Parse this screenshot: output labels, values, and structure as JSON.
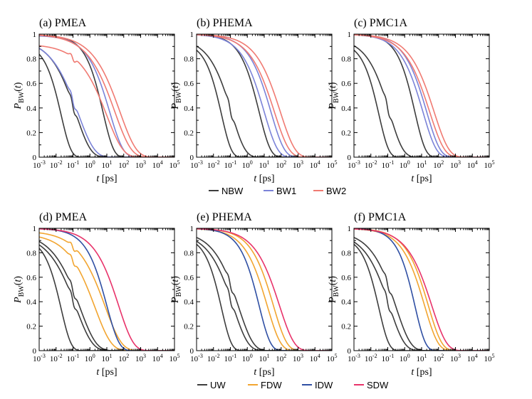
{
  "colors": {
    "NBW": "#3d3d3d",
    "BW1": "#7b83d8",
    "BW2": "#f07a72",
    "UW": "#3d3d3d",
    "FDW": "#f2a530",
    "IDW": "#2f4fa3",
    "SDW": "#e8336a"
  },
  "legends": [
    {
      "labels": [
        "NBW",
        "BW1",
        "BW2"
      ],
      "series_keys": [
        "NBW",
        "BW1",
        "BW2"
      ]
    },
    {
      "labels": [
        "UW",
        "FDW",
        "IDW",
        "SDW"
      ],
      "series_keys": [
        "UW",
        "FDW",
        "IDW",
        "SDW"
      ]
    }
  ],
  "chart_data": [
    {
      "type": "line",
      "title": "(a) PMEA",
      "xlabel": "t [ps]",
      "ylabel": "P_BW(t)",
      "xscale": "log",
      "xlim": [
        0.001,
        100000
      ],
      "ylim": [
        0,
        1
      ],
      "xticks": [
        "10-3",
        "10-2",
        "10-1",
        "100",
        "101",
        "102",
        "103",
        "104",
        "105"
      ],
      "yticks": [
        "0",
        "0.2",
        "0.4",
        "0.6",
        "0.8",
        "1"
      ],
      "series": [
        {
          "name": "NBW",
          "group": "NBW",
          "tau": 0.02,
          "beta": 0.75,
          "start": 0.93
        },
        {
          "name": "NBW",
          "group": "NBW",
          "tau": 0.15,
          "beta": 0.5,
          "start": 0.96,
          "bump": 0.05
        },
        {
          "name": "NBW",
          "group": "NBW",
          "tau": 6,
          "beta": 0.7,
          "start": 0.99
        },
        {
          "name": "BW1",
          "group": "BW1",
          "tau": 0.2,
          "beta": 0.45,
          "start": 0.97,
          "bump": 0.05
        },
        {
          "name": "BW1",
          "group": "BW1",
          "tau": 15,
          "beta": 0.55,
          "start": 0.99
        },
        {
          "name": "BW2",
          "group": "BW2",
          "tau": 30,
          "beta": 0.45,
          "start": 1.0
        },
        {
          "name": "BW2",
          "group": "BW2",
          "tau": 60,
          "beta": 0.45,
          "start": 1.0
        },
        {
          "name": "BW2",
          "group": "BW2",
          "tau": 10,
          "beta": 0.45,
          "start": 0.92,
          "bump": 0.04
        }
      ]
    },
    {
      "type": "line",
      "title": "(b) PHEMA",
      "xlabel": "t [ps]",
      "ylabel": "P_BW(t)",
      "xscale": "log",
      "xlim": [
        0.001,
        100000
      ],
      "ylim": [
        0,
        1
      ],
      "xticks": [
        "10-3",
        "10-2",
        "10-1",
        "100",
        "101",
        "102",
        "103",
        "104",
        "105"
      ],
      "yticks": [
        "0",
        "0.2",
        "0.4",
        "0.6",
        "0.8",
        "1"
      ],
      "series": [
        {
          "name": "NBW",
          "group": "NBW",
          "tau": 0.03,
          "beta": 0.75,
          "start": 0.94
        },
        {
          "name": "NBW",
          "group": "NBW",
          "tau": 0.12,
          "beta": 0.55,
          "start": 0.97,
          "bump": 0.05
        },
        {
          "name": "NBW",
          "group": "NBW",
          "tau": 5,
          "beta": 0.65,
          "start": 1.0
        },
        {
          "name": "BW1",
          "group": "BW1",
          "tau": 10,
          "beta": 0.55,
          "start": 1.0
        },
        {
          "name": "BW1",
          "group": "BW1",
          "tau": 25,
          "beta": 0.55,
          "start": 1.0
        },
        {
          "name": "BW2",
          "group": "BW2",
          "tau": 40,
          "beta": 0.5,
          "start": 1.0
        },
        {
          "name": "BW2",
          "group": "BW2",
          "tau": 90,
          "beta": 0.5,
          "start": 1.0
        }
      ]
    },
    {
      "type": "line",
      "title": "(c) PMC1A",
      "xlabel": "t [ps]",
      "ylabel": "P_BW(t)",
      "xscale": "log",
      "xlim": [
        0.001,
        100000
      ],
      "ylim": [
        0,
        1
      ],
      "xticks": [
        "10-3",
        "10-2",
        "10-1",
        "100",
        "101",
        "102",
        "103",
        "104",
        "105"
      ],
      "yticks": [
        "0",
        "0.2",
        "0.4",
        "0.6",
        "0.8",
        "1"
      ],
      "series": [
        {
          "name": "NBW",
          "group": "NBW",
          "tau": 0.03,
          "beta": 0.75,
          "start": 0.94
        },
        {
          "name": "NBW",
          "group": "NBW",
          "tau": 0.13,
          "beta": 0.55,
          "start": 0.97,
          "bump": 0.05
        },
        {
          "name": "NBW",
          "group": "NBW",
          "tau": 4,
          "beta": 0.7,
          "start": 1.0
        },
        {
          "name": "BW1",
          "group": "BW1",
          "tau": 12,
          "beta": 0.55,
          "start": 1.0
        },
        {
          "name": "BW1",
          "group": "BW1",
          "tau": 20,
          "beta": 0.55,
          "start": 1.0
        },
        {
          "name": "BW2",
          "group": "BW2",
          "tau": 30,
          "beta": 0.5,
          "start": 1.0
        },
        {
          "name": "BW2",
          "group": "BW2",
          "tau": 55,
          "beta": 0.5,
          "start": 1.0
        }
      ]
    },
    {
      "type": "line",
      "title": "(d) PMEA",
      "xlabel": "t [ps]",
      "ylabel": "P_BW(t)",
      "xscale": "log",
      "xlim": [
        0.001,
        100000
      ],
      "ylim": [
        0,
        1
      ],
      "xticks": [
        "10-3",
        "10-2",
        "10-1",
        "100",
        "101",
        "102",
        "103",
        "104",
        "105"
      ],
      "yticks": [
        "0",
        "0.2",
        "0.4",
        "0.6",
        "0.8",
        "1"
      ],
      "series": [
        {
          "name": "UW",
          "group": "UW",
          "tau": 0.02,
          "beta": 0.75,
          "start": 0.93
        },
        {
          "name": "UW",
          "group": "UW",
          "tau": 0.15,
          "beta": 0.45,
          "start": 0.96,
          "bump": 0.05
        },
        {
          "name": "UW",
          "group": "UW",
          "tau": 0.25,
          "beta": 0.45,
          "start": 0.97,
          "bump": 0.05
        },
        {
          "name": "FDW",
          "group": "FDW",
          "tau": 2,
          "beta": 0.45,
          "start": 0.96,
          "bump": 0.04
        },
        {
          "name": "FDW",
          "group": "FDW",
          "tau": 8,
          "beta": 0.45,
          "start": 0.98,
          "bump": 0.04
        },
        {
          "name": "IDW",
          "group": "IDW",
          "tau": 10,
          "beta": 0.6,
          "start": 1.0
        },
        {
          "name": "SDW",
          "group": "SDW",
          "tau": 50,
          "beta": 0.5,
          "start": 1.0
        }
      ]
    },
    {
      "type": "line",
      "title": "(e) PHEMA",
      "xlabel": "t [ps]",
      "ylabel": "P_BW(t)",
      "xscale": "log",
      "xlim": [
        0.001,
        100000
      ],
      "ylim": [
        0,
        1
      ],
      "xticks": [
        "10-3",
        "10-2",
        "10-1",
        "100",
        "101",
        "102",
        "103",
        "104",
        "105"
      ],
      "yticks": [
        "0",
        "0.2",
        "0.4",
        "0.6",
        "0.8",
        "1"
      ],
      "series": [
        {
          "name": "UW",
          "group": "UW",
          "tau": 0.03,
          "beta": 0.75,
          "start": 0.94
        },
        {
          "name": "UW",
          "group": "UW",
          "tau": 0.15,
          "beta": 0.5,
          "start": 0.97,
          "bump": 0.05
        },
        {
          "name": "UW",
          "group": "UW",
          "tau": 0.3,
          "beta": 0.5,
          "start": 0.98,
          "bump": 0.05
        },
        {
          "name": "FDW",
          "group": "FDW",
          "tau": 15,
          "beta": 0.55,
          "start": 1.0
        },
        {
          "name": "FDW",
          "group": "FDW",
          "tau": 35,
          "beta": 0.55,
          "start": 1.0
        },
        {
          "name": "IDW",
          "group": "IDW",
          "tau": 5,
          "beta": 0.65,
          "start": 1.0
        },
        {
          "name": "SDW",
          "group": "SDW",
          "tau": 80,
          "beta": 0.5,
          "start": 1.0
        }
      ]
    },
    {
      "type": "line",
      "title": "(f) PMC1A",
      "xlabel": "t [ps]",
      "ylabel": "P_BW(t)",
      "xscale": "log",
      "xlim": [
        0.001,
        100000
      ],
      "ylim": [
        0,
        1
      ],
      "xticks": [
        "10-3",
        "10-2",
        "10-1",
        "100",
        "101",
        "102",
        "103",
        "104",
        "105"
      ],
      "yticks": [
        "0",
        "0.2",
        "0.4",
        "0.6",
        "0.8",
        "1"
      ],
      "series": [
        {
          "name": "UW",
          "group": "UW",
          "tau": 0.03,
          "beta": 0.75,
          "start": 0.94
        },
        {
          "name": "UW",
          "group": "UW",
          "tau": 0.13,
          "beta": 0.5,
          "start": 0.97,
          "bump": 0.05
        },
        {
          "name": "UW",
          "group": "UW",
          "tau": 0.3,
          "beta": 0.5,
          "start": 0.98,
          "bump": 0.05
        },
        {
          "name": "FDW",
          "group": "FDW",
          "tau": 15,
          "beta": 0.55,
          "start": 1.0
        },
        {
          "name": "FDW",
          "group": "FDW",
          "tau": 25,
          "beta": 0.55,
          "start": 1.0
        },
        {
          "name": "IDW",
          "group": "IDW",
          "tau": 4,
          "beta": 0.7,
          "start": 1.0
        },
        {
          "name": "SDW",
          "group": "SDW",
          "tau": 40,
          "beta": 0.5,
          "start": 1.0
        }
      ]
    }
  ]
}
